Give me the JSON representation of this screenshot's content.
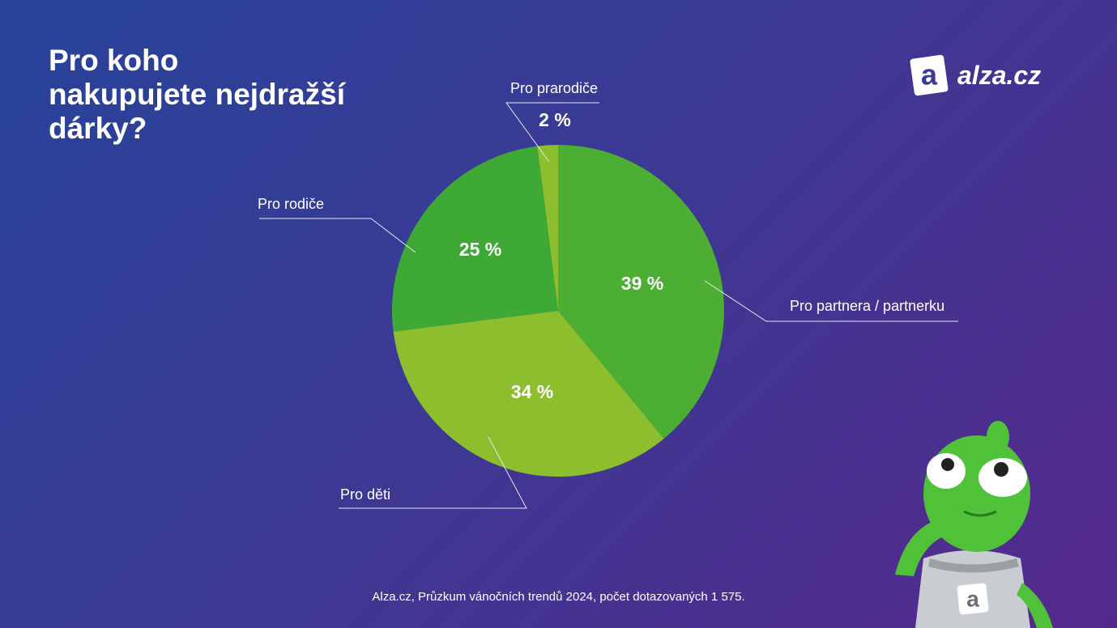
{
  "title": "Pro koho\nnakupujete nejdražší\ndárky?",
  "logo": "alza.cz",
  "source": "Alza.cz, Průzkum vánočních trendů 2024, počet dotazovaných 1 575.",
  "chart_data": {
    "type": "pie",
    "categories": [
      "Pro partnera / partnerku",
      "Pro děti",
      "Pro rodiče",
      "Pro prarodiče"
    ],
    "values": [
      39,
      34,
      25,
      2
    ],
    "value_labels": [
      "39 %",
      "34 %",
      "25 %",
      "2 %"
    ],
    "colors": [
      "#4cae33",
      "#8dbe2d",
      "#3fa935",
      "#8dbe2d"
    ]
  }
}
